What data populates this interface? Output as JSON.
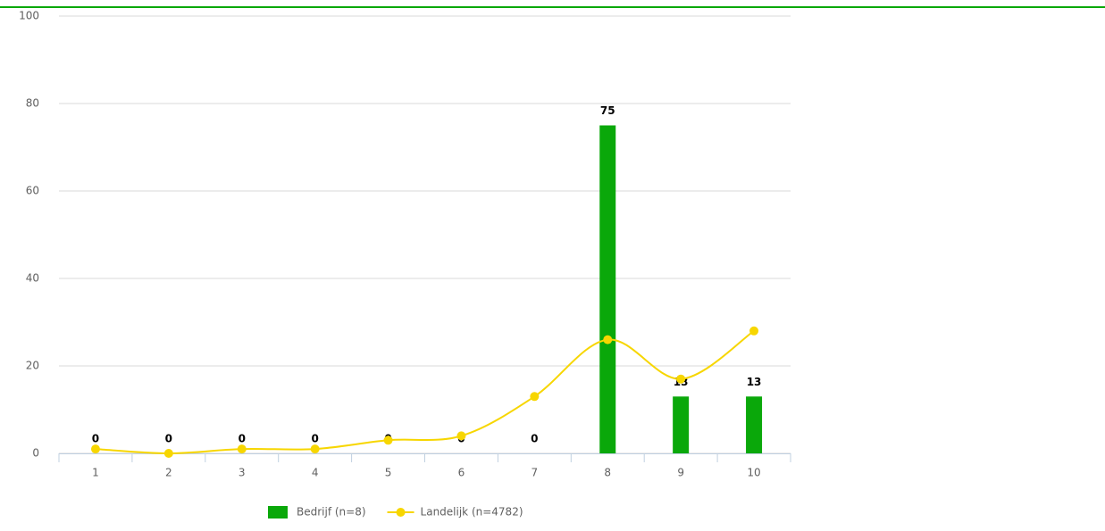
{
  "chart_data": {
    "type": "bar",
    "categories": [
      "1",
      "2",
      "3",
      "4",
      "5",
      "6",
      "7",
      "8",
      "9",
      "10"
    ],
    "series": [
      {
        "name": "Bedrijf (n=8)",
        "type": "bar",
        "color": "#0aa80a",
        "values": [
          0,
          0,
          0,
          0,
          0,
          0,
          0,
          75,
          13,
          13
        ]
      },
      {
        "name": "Landelijk (n=4782)",
        "type": "line",
        "color": "#f7d600",
        "values": [
          1,
          0,
          1,
          1,
          3,
          4,
          13,
          26,
          17,
          28
        ]
      }
    ],
    "ylim": [
      0,
      100
    ],
    "yticks": [
      0,
      20,
      40,
      60,
      80,
      100
    ],
    "grid": true,
    "legend": "bottom"
  }
}
